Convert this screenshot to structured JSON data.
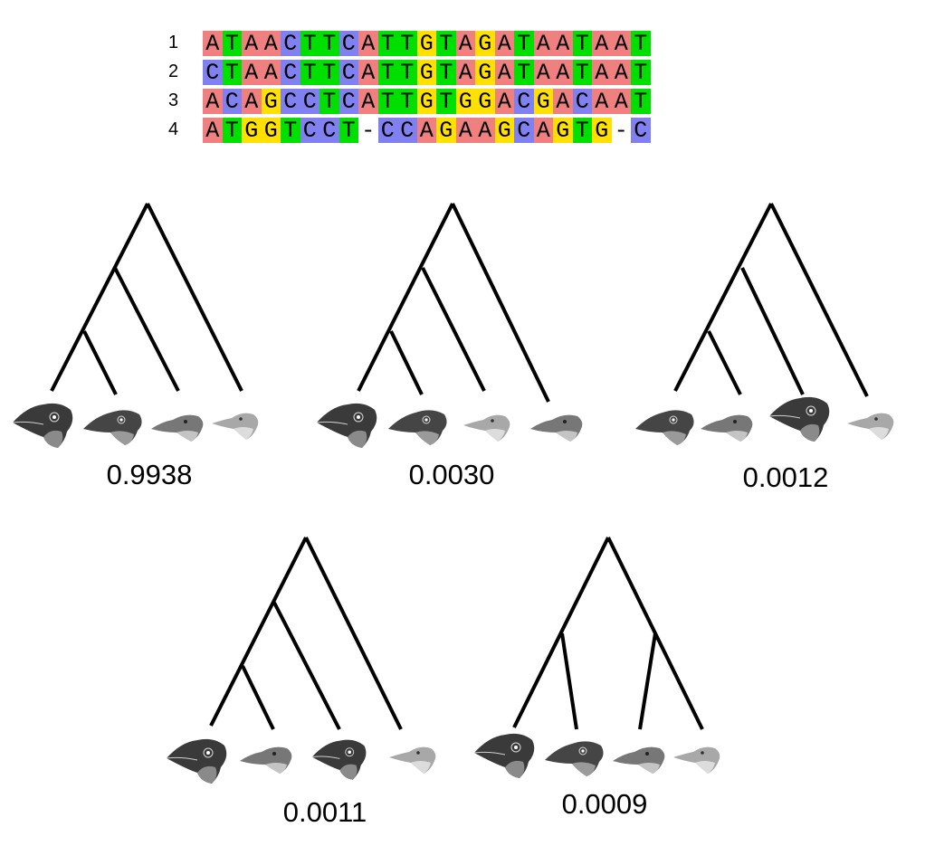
{
  "alignment": {
    "rows": [
      {
        "label": "1",
        "sequence": "ATAACTTCATTGTAGATAATAAT"
      },
      {
        "label": "2",
        "sequence": "CTAACTTCATTGTAGATAATAAT"
      },
      {
        "label": "3",
        "sequence": "ACAGCCTCATTGTGGACGACAAT"
      },
      {
        "label": "4",
        "sequence": "ATGGTCCT-CCAGAAGCAGTG-C"
      }
    ],
    "base_colors": {
      "A": "#f08080",
      "T": "#00e000",
      "C": "#8080f0",
      "G": "#ffe000"
    }
  },
  "trees": [
    {
      "topology": "(((1,2),3),4)",
      "leaf_order": [
        "1",
        "2",
        "3",
        "4"
      ],
      "probability": "0.9938"
    },
    {
      "topology": "(((1,2),4),3)",
      "leaf_order": [
        "1",
        "2",
        "4",
        "3"
      ],
      "probability": "0.0030"
    },
    {
      "topology": "(((2,3),1),4)",
      "leaf_order": [
        "2",
        "3",
        "1",
        "4"
      ],
      "probability": "0.0012"
    },
    {
      "topology": "(((1,3),2),4)",
      "leaf_order": [
        "1",
        "3",
        "2",
        "4"
      ],
      "probability": "0.0011"
    },
    {
      "topology": "((1,2),(3,4))",
      "leaf_order": [
        "1",
        "2",
        "3",
        "4"
      ],
      "probability": "0.0009"
    }
  ]
}
